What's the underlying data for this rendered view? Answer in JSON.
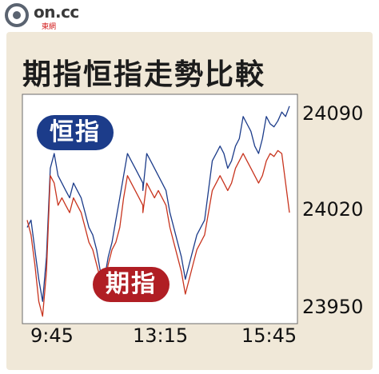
{
  "brand": {
    "logo_text": "on.cc",
    "logo_sub": "東網"
  },
  "chart_data": {
    "type": "line",
    "title": "期指恒指走勢比較",
    "xlabel": "",
    "ylabel": "",
    "x_ticks": [
      "9:45",
      "13:15",
      "15:45"
    ],
    "y_ticks": [
      24090,
      24020,
      23950
    ],
    "ylim": [
      23945,
      24100
    ],
    "grid": false,
    "series": [
      {
        "name": "恒指",
        "color": "#1c3c8a",
        "x": [
          "9:30",
          "9:35",
          "9:40",
          "9:45",
          "9:50",
          "9:55",
          "10:00",
          "10:05",
          "10:10",
          "10:15",
          "10:20",
          "10:25",
          "10:30",
          "10:35",
          "10:40",
          "10:45",
          "10:50",
          "10:55",
          "11:00",
          "11:05",
          "11:10",
          "11:15",
          "11:20",
          "11:25",
          "11:30",
          "11:35",
          "11:40",
          "11:45",
          "11:50",
          "11:55",
          "12:00",
          "13:00",
          "13:05",
          "13:10",
          "13:15",
          "13:20",
          "13:25",
          "13:30",
          "13:35",
          "13:40",
          "13:45",
          "13:50",
          "13:55",
          "14:00",
          "14:05",
          "14:10",
          "14:15",
          "14:20",
          "14:25",
          "14:30",
          "14:35",
          "14:40",
          "14:45",
          "14:50",
          "14:55",
          "15:00",
          "15:05",
          "15:10",
          "15:15",
          "15:20",
          "15:25",
          "15:30",
          "15:35",
          "15:40",
          "15:45",
          "15:50",
          "15:55",
          "16:00",
          "16:05",
          "16:10"
        ],
        "values": [
          24010,
          24015,
          23995,
          23975,
          23960,
          23990,
          24050,
          24060,
          24045,
          24040,
          24035,
          24030,
          24040,
          24035,
          24030,
          24020,
          24010,
          24005,
          23995,
          23980,
          23975,
          23990,
          24000,
          24015,
          24030,
          24045,
          24060,
          24055,
          24050,
          24045,
          24040,
          24035,
          24060,
          24055,
          24050,
          24045,
          24040,
          24035,
          24020,
          24010,
          24000,
          23990,
          23975,
          23985,
          23995,
          24005,
          24010,
          24015,
          24035,
          24055,
          24060,
          24065,
          24060,
          24050,
          24055,
          24065,
          24070,
          24085,
          24080,
          24075,
          24065,
          24060,
          24070,
          24085,
          24080,
          24078,
          24082,
          24088,
          24085,
          24092
        ]
      },
      {
        "name": "期指",
        "color": "#c8341e",
        "x": [
          "9:30",
          "9:35",
          "9:40",
          "9:45",
          "9:50",
          "9:55",
          "10:00",
          "10:05",
          "10:10",
          "10:15",
          "10:20",
          "10:25",
          "10:30",
          "10:35",
          "10:40",
          "10:45",
          "10:50",
          "10:55",
          "11:00",
          "11:05",
          "11:10",
          "11:15",
          "11:20",
          "11:25",
          "11:30",
          "11:35",
          "11:40",
          "11:45",
          "11:50",
          "11:55",
          "12:00",
          "13:00",
          "13:05",
          "13:10",
          "13:15",
          "13:20",
          "13:25",
          "13:30",
          "13:35",
          "13:40",
          "13:45",
          "13:50",
          "13:55",
          "14:00",
          "14:05",
          "14:10",
          "14:15",
          "14:20",
          "14:25",
          "14:30",
          "14:35",
          "14:40",
          "14:45",
          "14:50",
          "14:55",
          "15:00",
          "15:05",
          "15:10",
          "15:15",
          "15:20",
          "15:25",
          "15:30",
          "15:35",
          "15:40",
          "15:45",
          "15:50",
          "15:55",
          "16:00",
          "16:05",
          "16:10"
        ],
        "values": [
          24015,
          24005,
          23985,
          23960,
          23950,
          23980,
          24045,
          24040,
          24025,
          24030,
          24025,
          24020,
          24030,
          24025,
          24020,
          24010,
          24000,
          23995,
          23985,
          23975,
          23970,
          23985,
          23995,
          24000,
          24010,
          24030,
          24045,
          24040,
          24035,
          24030,
          24025,
          24020,
          24040,
          24035,
          24030,
          24035,
          24030,
          24025,
          24010,
          24000,
          23990,
          23980,
          23965,
          23975,
          23985,
          23995,
          24000,
          24005,
          24020,
          24035,
          24040,
          24045,
          24040,
          24035,
          24040,
          24050,
          24055,
          24060,
          24055,
          24050,
          24045,
          24040,
          24045,
          24055,
          24060,
          24058,
          24062,
          24060,
          24040,
          24020
        ]
      }
    ]
  }
}
